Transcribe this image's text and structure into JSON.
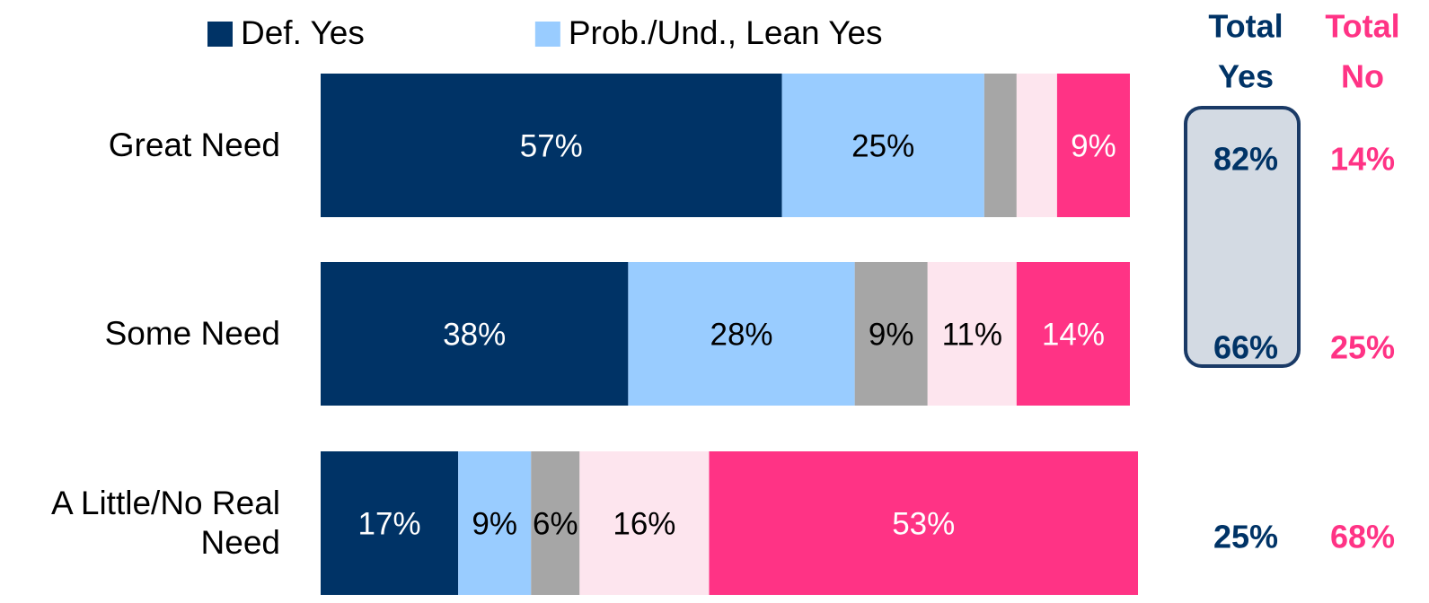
{
  "chart_data": {
    "type": "stacked-bar-horizontal",
    "categories": [
      "Great Need",
      "Some Need",
      "A Little/No Real Need"
    ],
    "xlim": [
      0,
      100
    ],
    "legend": "top",
    "series": [
      {
        "name": "Def. Yes",
        "color": "#003366",
        "label_color": "#ffffff",
        "values": [
          57,
          38,
          17
        ],
        "value_labels": [
          "57%",
          "38%",
          "17%"
        ]
      },
      {
        "name": "Prob./Und., Lean Yes",
        "color": "#99ccff",
        "label_color": "#000000",
        "values": [
          25,
          28,
          9
        ],
        "value_labels": [
          "25%",
          "28%",
          "9%"
        ]
      },
      {
        "color": "#a6a6a6",
        "label_color": "#000000",
        "values": [
          4,
          9,
          6
        ],
        "value_labels": [
          null,
          "9%",
          "6%"
        ]
      },
      {
        "color": "#fde5ee",
        "label_color": "#000000",
        "values": [
          5,
          11,
          16
        ],
        "value_labels": [
          null,
          "11%",
          "16%"
        ]
      },
      {
        "color": "#ff3385",
        "label_color": "#ffffff",
        "values": [
          9,
          14,
          53
        ],
        "value_labels": [
          "9%",
          "14%",
          "53%"
        ]
      }
    ],
    "totals": [
      {
        "title": [
          "Total",
          "Yes"
        ],
        "color": "#003366",
        "values": [
          82,
          66,
          25
        ],
        "value_labels": [
          "82%",
          "66%",
          "25%"
        ]
      },
      {
        "title": [
          "Total",
          "No"
        ],
        "color": "#ff3385",
        "values": [
          14,
          25,
          68
        ],
        "value_labels": [
          "14%",
          "25%",
          "68%"
        ]
      }
    ]
  }
}
